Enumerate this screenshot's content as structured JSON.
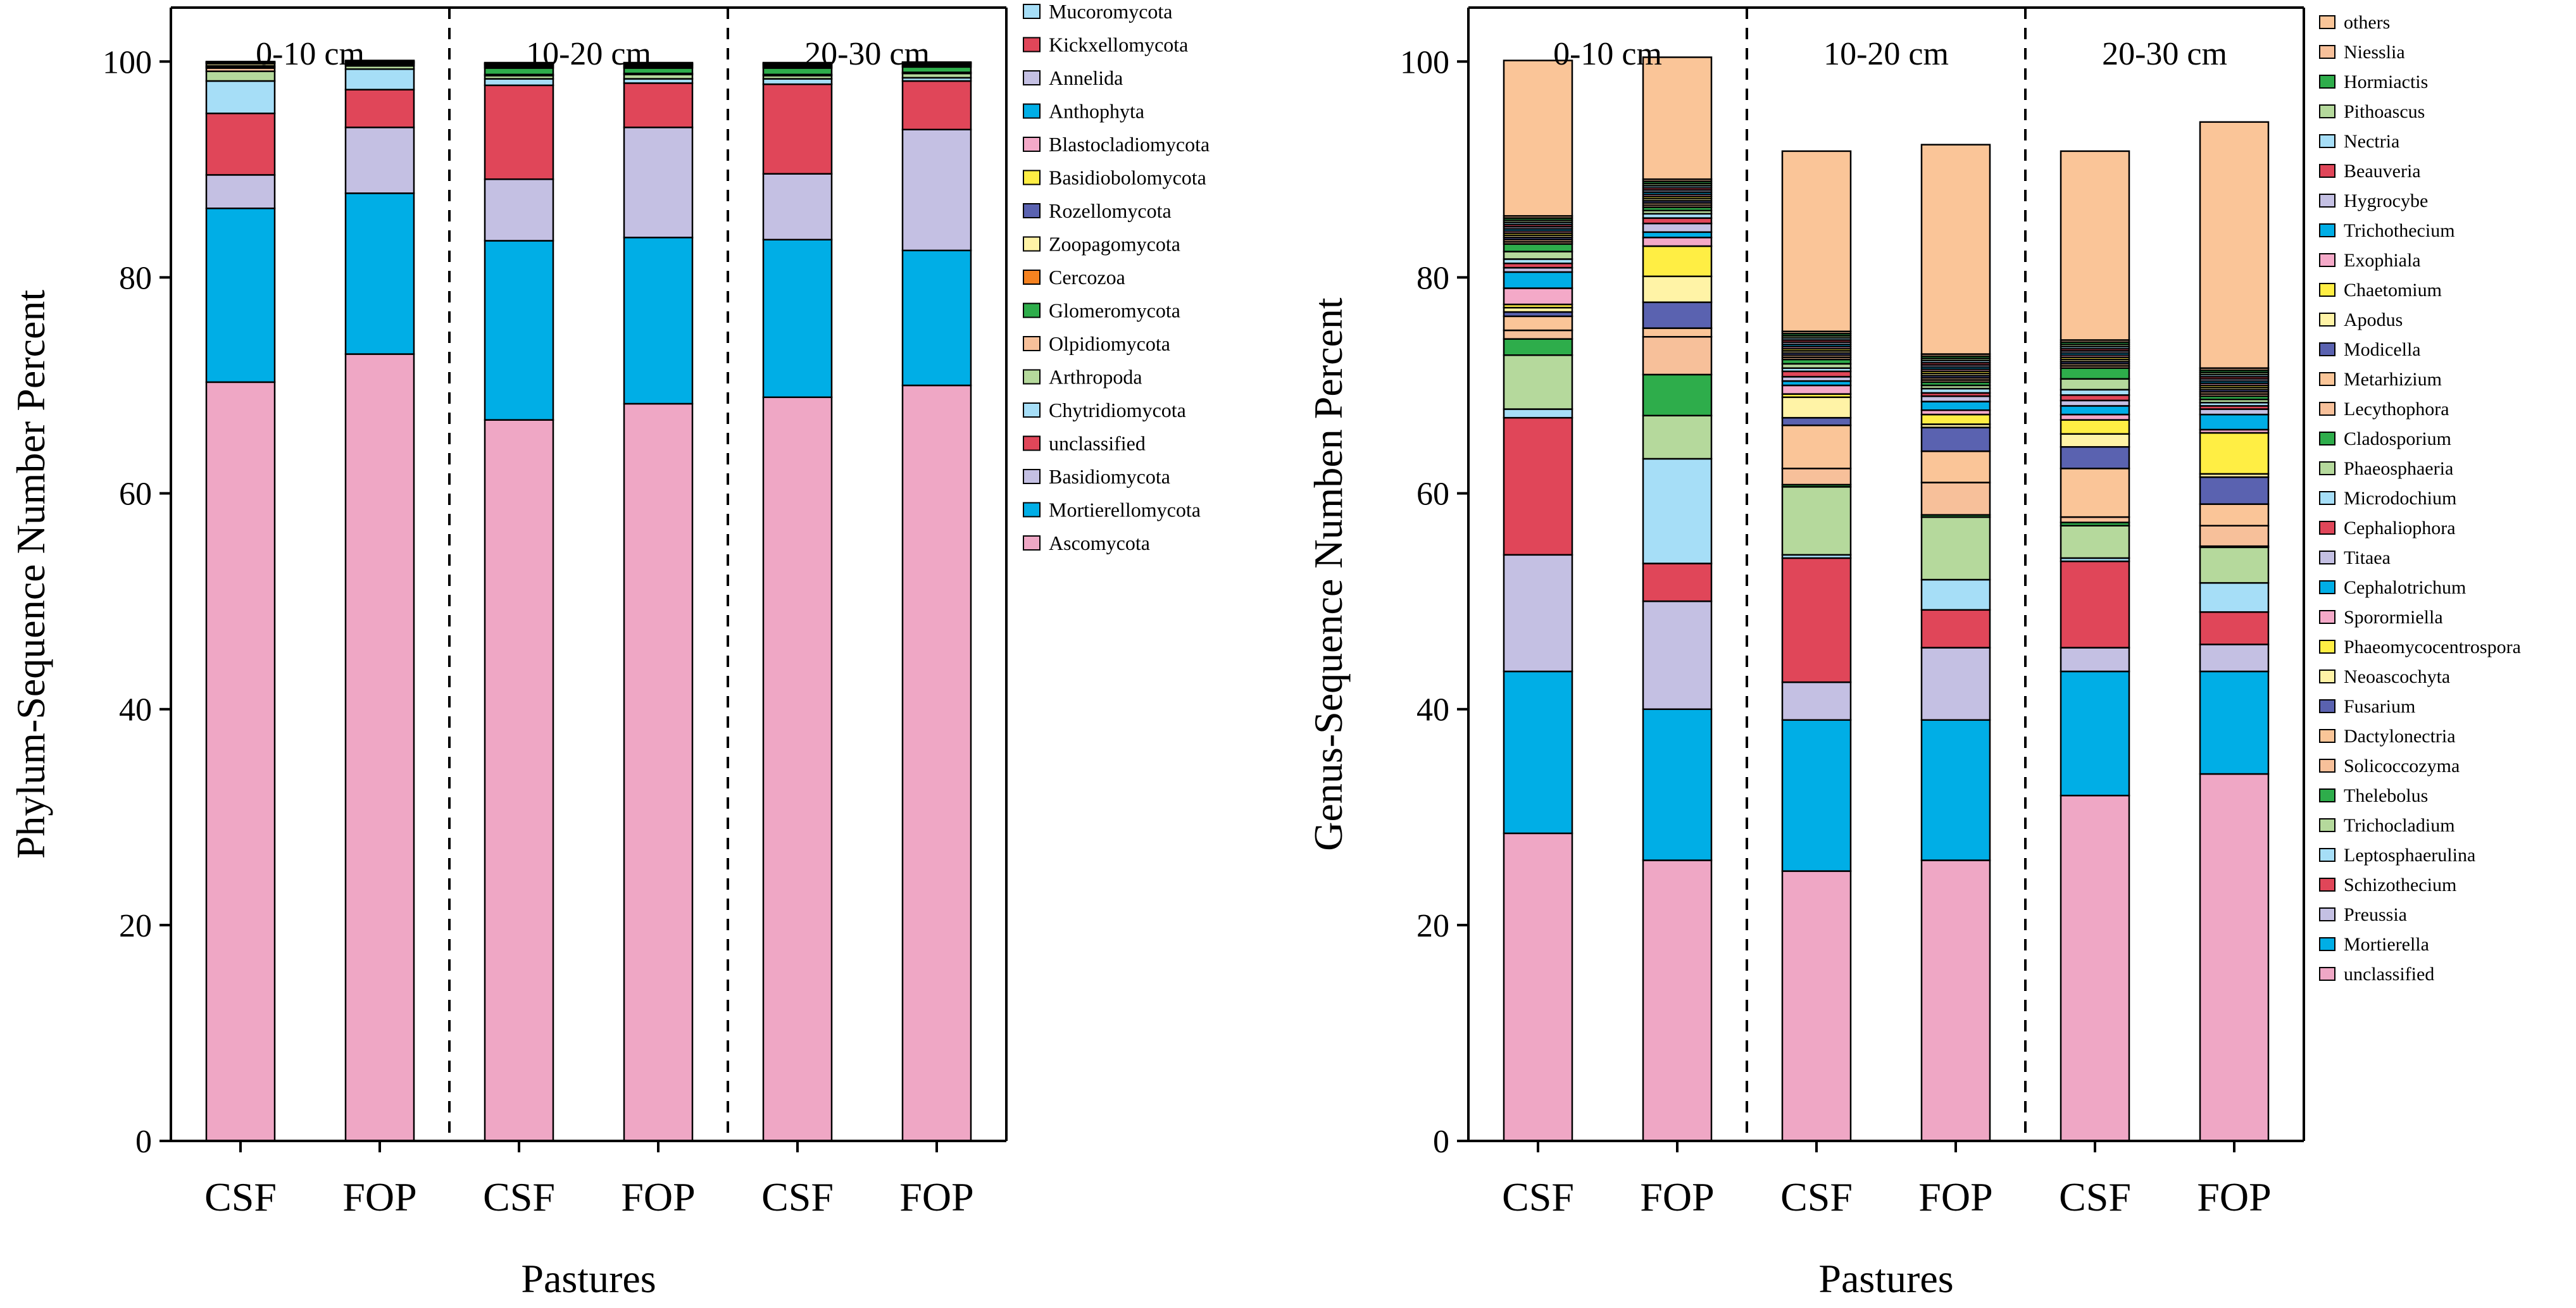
{
  "chart_data": [
    {
      "type": "bar",
      "stacked": true,
      "title": "",
      "xlabel": "Pastures",
      "ylabel": "Phylum-Sequence Number Percent",
      "ylim": [
        0,
        105
      ],
      "yticks": [
        0,
        20,
        40,
        60,
        80,
        100
      ],
      "categories": [
        "CSF",
        "FOP",
        "CSF",
        "FOP",
        "CSF",
        "FOP"
      ],
      "groups": [
        "0-10 cm",
        "10-20 cm",
        "20-30 cm"
      ],
      "legend_position": "right",
      "series": [
        {
          "name": "Ascomycota",
          "color": "#EFA7C5",
          "values": [
            70.3,
            72.9,
            66.8,
            68.3,
            68.9,
            70.0
          ]
        },
        {
          "name": "Mortierellomycota",
          "color": "#00AEE6",
          "values": [
            16.1,
            14.9,
            16.6,
            15.4,
            14.6,
            12.5
          ]
        },
        {
          "name": "Basidiomycota",
          "color": "#C4C0E3",
          "values": [
            3.1,
            6.1,
            5.7,
            10.2,
            6.1,
            11.2
          ]
        },
        {
          "name": "unclassified",
          "color": "#E04659",
          "values": [
            5.7,
            3.5,
            8.7,
            4.1,
            8.3,
            4.5
          ]
        },
        {
          "name": "Chytridiomycota",
          "color": "#A6DEF7",
          "values": [
            3.0,
            1.9,
            0.6,
            0.4,
            0.5,
            0.3
          ]
        },
        {
          "name": "Arthropoda",
          "color": "#B5D99C",
          "values": [
            0.9,
            0.3,
            0.3,
            0.4,
            0.3,
            0.4
          ]
        },
        {
          "name": "Olpidiomycota",
          "color": "#F7C09A",
          "values": [
            0.3,
            0.1,
            0.1,
            0.1,
            0.1,
            0.1
          ]
        },
        {
          "name": "Glomeromycota",
          "color": "#2EAD4B",
          "values": [
            0.1,
            0.1,
            0.6,
            0.5,
            0.6,
            0.5
          ]
        },
        {
          "name": "Cercozoa",
          "color": "#F58220",
          "values": [
            0.1,
            0.05,
            0.1,
            0.1,
            0.1,
            0.1
          ]
        },
        {
          "name": "Zoopagomycota",
          "color": "#FFF3A6",
          "values": [
            0.2,
            0.05,
            0.1,
            0.1,
            0.1,
            0.1
          ]
        },
        {
          "name": "Rozellomycota",
          "color": "#5A62B0",
          "values": [
            0.05,
            0.05,
            0.1,
            0.1,
            0.1,
            0.1
          ]
        },
        {
          "name": "Basidiobolomycota",
          "color": "#FFEE44",
          "values": [
            0.05,
            0.05,
            0.05,
            0.05,
            0.05,
            0.05
          ]
        },
        {
          "name": "Blastocladiomycota",
          "color": "#F4A9C8",
          "values": [
            0.05,
            0.05,
            0.05,
            0.05,
            0.05,
            0.05
          ]
        },
        {
          "name": "Anthophyta",
          "color": "#00AEE6",
          "values": [
            0.05,
            0.05,
            0.05,
            0.05,
            0.05,
            0.05
          ]
        },
        {
          "name": "Annelida",
          "color": "#C4C0E3",
          "values": [
            0.0,
            0.0,
            0.05,
            0.05,
            0.05,
            0.0
          ]
        },
        {
          "name": "Kickxellomycota",
          "color": "#E04659",
          "values": [
            0.0,
            0.0,
            0.0,
            0.0,
            0.0,
            0.0
          ]
        },
        {
          "name": "Mucoromycota",
          "color": "#A6DEF7",
          "values": [
            0.0,
            0.0,
            0.0,
            0.0,
            0.0,
            0.0
          ]
        }
      ]
    },
    {
      "type": "bar",
      "stacked": true,
      "title": "",
      "xlabel": "Pastures",
      "ylabel": "Genus-Sequence Numben Percent",
      "ylim": [
        0,
        105
      ],
      "yticks": [
        0,
        20,
        40,
        60,
        80,
        100
      ],
      "categories": [
        "CSF",
        "FOP",
        "CSF",
        "FOP",
        "CSF",
        "FOP"
      ],
      "groups": [
        "0-10 cm",
        "10-20 cm",
        "20-30 cm"
      ],
      "legend_position": "right",
      "series": [
        {
          "name": "unclassified",
          "color": "#EFA7C5",
          "values": [
            28.5,
            26.0,
            25.0,
            26.0,
            32.0,
            34.0
          ]
        },
        {
          "name": "Mortierella",
          "color": "#00AEE6",
          "values": [
            15.0,
            14.0,
            14.0,
            13.0,
            11.5,
            9.5
          ]
        },
        {
          "name": "Preussia",
          "color": "#C4C0E3",
          "values": [
            10.8,
            10.0,
            3.5,
            6.7,
            2.2,
            2.5
          ]
        },
        {
          "name": "Schizothecium",
          "color": "#E04659",
          "values": [
            12.7,
            3.5,
            11.5,
            3.5,
            8.0,
            3.0
          ]
        },
        {
          "name": "Leptosphaerulina",
          "color": "#A6DEF7",
          "values": [
            0.8,
            9.7,
            0.3,
            2.8,
            0.3,
            2.7
          ]
        },
        {
          "name": "Trichocladium",
          "color": "#B5D99C",
          "values": [
            5.0,
            4.0,
            6.3,
            5.8,
            3.0,
            3.3
          ]
        },
        {
          "name": "Thelebolus",
          "color": "#2EAD4B",
          "values": [
            1.5,
            3.8,
            0.2,
            0.2,
            0.3,
            0.1
          ]
        },
        {
          "name": "Solicoccozyma",
          "color": "#F7C09A",
          "values": [
            0.8,
            3.5,
            1.5,
            3.0,
            0.5,
            1.9
          ]
        },
        {
          "name": "Dactylonectria",
          "color": "#FAC598",
          "values": [
            1.3,
            0.8,
            4.0,
            2.9,
            4.5,
            2.0
          ]
        },
        {
          "name": "Fusarium",
          "color": "#5A62B0",
          "values": [
            0.4,
            2.4,
            0.7,
            2.2,
            2.0,
            2.5
          ]
        },
        {
          "name": "Neoascochyta",
          "color": "#FFF3A6",
          "values": [
            0.4,
            2.4,
            1.9,
            0.3,
            1.2,
            0.3
          ]
        },
        {
          "name": "Phaeomycocentrospora",
          "color": "#FFEE44",
          "values": [
            0.3,
            2.8,
            0.3,
            0.9,
            1.3,
            3.8
          ]
        },
        {
          "name": "Sporormiella",
          "color": "#F4A9C8",
          "values": [
            1.5,
            0.8,
            0.8,
            0.4,
            0.5,
            0.3
          ]
        },
        {
          "name": "Cephalotrichum",
          "color": "#00AEE6",
          "values": [
            1.5,
            0.5,
            0.4,
            0.8,
            0.8,
            1.4
          ]
        },
        {
          "name": "Titaea",
          "color": "#C4C0E3",
          "values": [
            0.4,
            0.8,
            0.4,
            0.5,
            0.5,
            0.5
          ]
        },
        {
          "name": "Cephaliophora",
          "color": "#E04659",
          "values": [
            0.4,
            0.5,
            0.5,
            0.3,
            0.5,
            0.3
          ]
        },
        {
          "name": "Microdochium",
          "color": "#A6DEF7",
          "values": [
            0.4,
            0.4,
            0.3,
            0.4,
            0.5,
            0.3
          ]
        },
        {
          "name": "Phaeosphaeria",
          "color": "#B5D99C",
          "values": [
            0.7,
            0.3,
            0.4,
            0.3,
            1.0,
            0.3
          ]
        },
        {
          "name": "Cladosporium",
          "color": "#2EAD4B",
          "values": [
            0.7,
            0.3,
            0.4,
            0.3,
            1.0,
            0.3
          ]
        },
        {
          "name": "Lecythophora",
          "color": "#F7C09A",
          "values": [
            0.2,
            0.2,
            0.2,
            0.2,
            0.2,
            0.2
          ]
        },
        {
          "name": "Metarhizium",
          "color": "#FAC598",
          "values": [
            0.2,
            0.2,
            0.2,
            0.2,
            0.2,
            0.2
          ]
        },
        {
          "name": "Modicella",
          "color": "#5A62B0",
          "values": [
            0.2,
            0.2,
            0.2,
            0.2,
            0.2,
            0.2
          ]
        },
        {
          "name": "Apodus",
          "color": "#FFF3A6",
          "values": [
            0.2,
            0.2,
            0.2,
            0.2,
            0.2,
            0.2
          ]
        },
        {
          "name": "Chaetomium",
          "color": "#FFEE44",
          "values": [
            0.2,
            0.2,
            0.2,
            0.2,
            0.2,
            0.2
          ]
        },
        {
          "name": "Exophiala",
          "color": "#F4A9C8",
          "values": [
            0.2,
            0.2,
            0.2,
            0.2,
            0.2,
            0.2
          ]
        },
        {
          "name": "Trichothecium",
          "color": "#00AEE6",
          "values": [
            0.2,
            0.2,
            0.2,
            0.2,
            0.2,
            0.2
          ]
        },
        {
          "name": "Hygrocybe",
          "color": "#C4C0E3",
          "values": [
            0.2,
            0.2,
            0.2,
            0.2,
            0.2,
            0.2
          ]
        },
        {
          "name": "Beauveria",
          "color": "#E04659",
          "values": [
            0.2,
            0.2,
            0.2,
            0.2,
            0.2,
            0.2
          ]
        },
        {
          "name": "Nectria",
          "color": "#A6DEF7",
          "values": [
            0.2,
            0.2,
            0.2,
            0.2,
            0.2,
            0.2
          ]
        },
        {
          "name": "Pithoascus",
          "color": "#B5D99C",
          "values": [
            0.2,
            0.2,
            0.2,
            0.2,
            0.2,
            0.2
          ]
        },
        {
          "name": "Hormiactis",
          "color": "#2EAD4B",
          "values": [
            0.2,
            0.2,
            0.2,
            0.2,
            0.2,
            0.2
          ]
        },
        {
          "name": "Niesslia",
          "color": "#F7C09A",
          "values": [
            0.2,
            0.2,
            0.2,
            0.2,
            0.2,
            0.2
          ]
        },
        {
          "name": "others",
          "color": "#FAC598",
          "values": [
            14.4,
            11.3,
            16.7,
            19.4,
            17.5,
            22.8
          ]
        }
      ]
    }
  ]
}
